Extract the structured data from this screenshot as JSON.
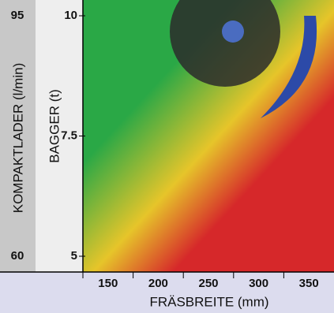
{
  "chart_data": {
    "type": "gradient",
    "categories": [
      "150",
      "200",
      "250",
      "300",
      "350"
    ],
    "xlabel": "FRÄSBREITE (mm)",
    "ylabel": "KOMPAKTLADER (l/min)",
    "ylim": [
      60,
      95
    ],
    "yticks": [
      60,
      95
    ],
    "y2label": "BAGGER (t)",
    "y2lim": [
      5,
      10
    ],
    "y2ticks": [
      5,
      7.5,
      10
    ],
    "colors": [
      "#2aa846",
      "#e6c52a",
      "#d6282a"
    ]
  }
}
